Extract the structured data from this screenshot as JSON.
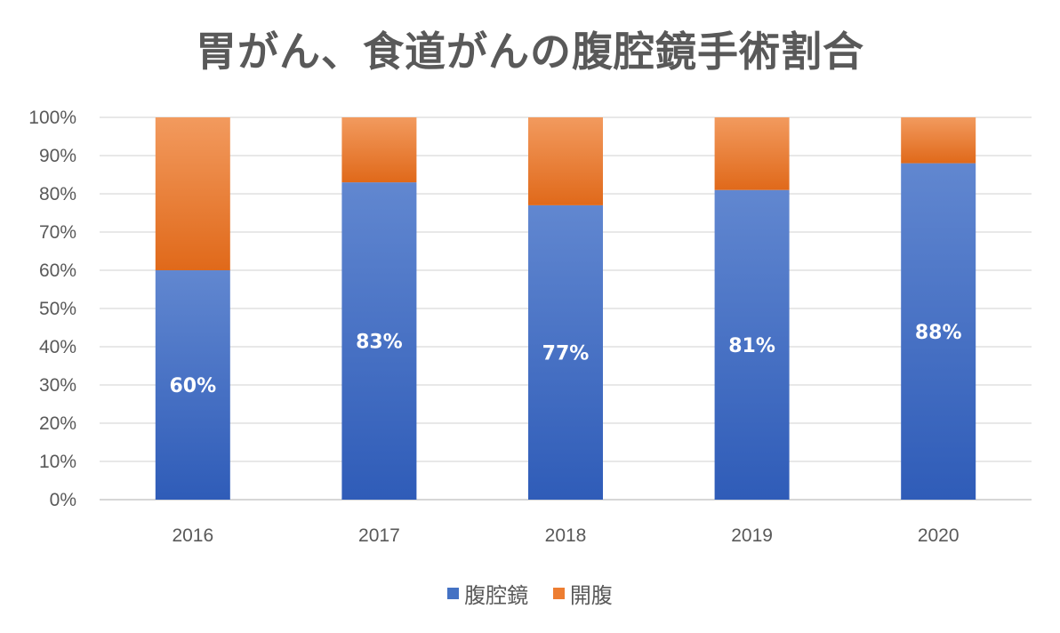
{
  "chart_data": {
    "type": "bar",
    "stacked": true,
    "title": "胃がん、食道がんの腹腔鏡手術割合",
    "categories": [
      "2016",
      "2017",
      "2018",
      "2019",
      "2020"
    ],
    "series": [
      {
        "name": "腹腔鏡",
        "values": [
          60,
          83,
          77,
          81,
          88
        ],
        "color": "#4472C4",
        "data_labels": [
          "60%",
          "83%",
          "77%",
          "81%",
          "88%"
        ]
      },
      {
        "name": "開腹",
        "values": [
          40,
          17,
          23,
          19,
          12
        ],
        "color": "#ED7D31"
      }
    ],
    "ylim": [
      0,
      100
    ],
    "yticks": [
      "0%",
      "10%",
      "20%",
      "30%",
      "40%",
      "50%",
      "60%",
      "70%",
      "80%",
      "90%",
      "100%"
    ],
    "grid": true,
    "legend_position": "bottom"
  }
}
